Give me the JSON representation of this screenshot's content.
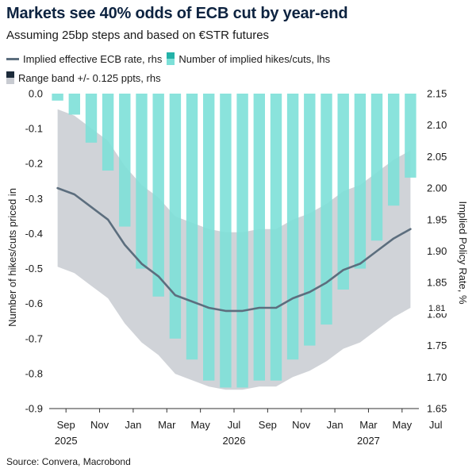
{
  "title": "Markets see 40% odds of ECB cut by year-end",
  "subtitle": "Assuming 25bp steps and based on €STR futures",
  "legend": {
    "line": "Implied effective ECB rate, rhs",
    "bars": "Number of implied hikes/cuts, lhs",
    "band": "Range band +/- 0.125 ppts, rhs"
  },
  "source": "Source: Convera, Macrobond",
  "colors": {
    "bar": "#7de0d8",
    "line": "#5c6e7e",
    "band": "#c8cbd1",
    "title": "#0d2340"
  },
  "chart_data": {
    "type": "bar+line+area",
    "title": "Markets see 40% odds of ECB cut by year-end",
    "subtitle": "Assuming 25bp steps and based on €STR futures",
    "left_axis": {
      "label": "Number of hikes/cuts priced in",
      "range": [
        -0.9,
        0.0
      ],
      "ticks": [
        "0.0",
        "-0.1",
        "-0.2",
        "-0.3",
        "-0.4",
        "-0.5",
        "-0.6",
        "-0.7",
        "-0.8",
        "-0.9"
      ]
    },
    "right_axis": {
      "label": "Implied Policy Rate, %",
      "range": [
        1.65,
        2.15
      ],
      "ticks": [
        "2.15",
        "2.10",
        "2.05",
        "2.00",
        "1.95",
        "1.90",
        "1.85",
        "1.80",
        "1.75",
        "1.70",
        "1.65"
      ],
      "highlight_label": "1.81"
    },
    "x_axis": {
      "month_labels": [
        "Sep",
        "Nov",
        "Jan",
        "Mar",
        "May",
        "Jul",
        "Sep",
        "Nov",
        "Jan",
        "Mar",
        "May",
        "Jul"
      ],
      "year_labels": [
        "2025",
        "2026",
        "2027"
      ]
    },
    "bars": {
      "name": "Number of implied hikes/cuts, lhs",
      "values": [
        -0.02,
        -0.06,
        -0.14,
        -0.22,
        -0.38,
        -0.5,
        -0.58,
        -0.7,
        -0.76,
        -0.82,
        -0.84,
        -0.84,
        -0.82,
        -0.82,
        -0.76,
        -0.72,
        -0.66,
        -0.56,
        -0.5,
        -0.42,
        -0.32,
        -0.24
      ]
    },
    "line": {
      "name": "Implied effective ECB rate, rhs",
      "values": [
        2.0,
        1.99,
        1.97,
        1.95,
        1.91,
        1.88,
        1.86,
        1.83,
        1.82,
        1.81,
        1.805,
        1.805,
        1.81,
        1.81,
        1.825,
        1.835,
        1.85,
        1.87,
        1.88,
        1.9,
        1.92,
        1.935
      ]
    },
    "band": {
      "name": "Range band +/- 0.125 ppts, rhs",
      "upper": [
        2.125,
        2.115,
        2.095,
        2.075,
        2.035,
        2.005,
        1.985,
        1.955,
        1.945,
        1.935,
        1.93,
        1.93,
        1.935,
        1.935,
        1.95,
        1.96,
        1.975,
        1.995,
        2.005,
        2.025,
        2.045,
        2.06
      ],
      "lower": [
        1.875,
        1.865,
        1.845,
        1.825,
        1.785,
        1.755,
        1.735,
        1.705,
        1.695,
        1.685,
        1.68,
        1.68,
        1.685,
        1.685,
        1.7,
        1.71,
        1.725,
        1.745,
        1.755,
        1.775,
        1.795,
        1.81
      ]
    }
  }
}
